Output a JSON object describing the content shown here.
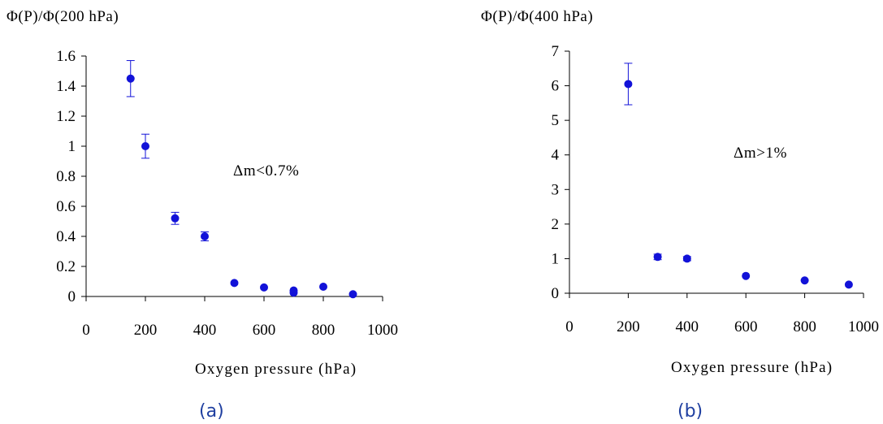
{
  "colors": {
    "marker": "#1212d8",
    "axis": "#000000",
    "panel_label": "#1f3fa0"
  },
  "chart_data": [
    {
      "type": "scatter",
      "ylabel": "Φ(P)/Φ(200 hPa)",
      "xlabel": "Oxygen pressure (hPa)",
      "annotation": "Δm<0.7%",
      "panel_label": "(a)",
      "xlim": [
        0,
        1000
      ],
      "ylim": [
        0,
        1.6
      ],
      "xticks": [
        "0",
        "200",
        "400",
        "600",
        "800",
        "1000"
      ],
      "yticks": [
        "0",
        "0.2",
        "0.4",
        "0.6",
        "0.8",
        "1",
        "1.2",
        "1.4",
        "1.6"
      ],
      "points": [
        {
          "x": 150,
          "y": 1.45,
          "err": 0.12
        },
        {
          "x": 200,
          "y": 1.0,
          "err": 0.08
        },
        {
          "x": 300,
          "y": 0.52,
          "err": 0.04
        },
        {
          "x": 400,
          "y": 0.4,
          "err": 0.03
        },
        {
          "x": 500,
          "y": 0.09,
          "err": 0
        },
        {
          "x": 600,
          "y": 0.06,
          "err": 0
        },
        {
          "x": 700,
          "y": 0.04,
          "err": 0
        },
        {
          "x": 700,
          "y": 0.025,
          "err": 0
        },
        {
          "x": 800,
          "y": 0.065,
          "err": 0
        },
        {
          "x": 900,
          "y": 0.015,
          "err": 0
        }
      ]
    },
    {
      "type": "scatter",
      "ylabel": "Φ(P)/Φ(400 hPa)",
      "xlabel": "Oxygen pressure (hPa)",
      "annotation": "Δm>1%",
      "panel_label": "(b)",
      "xlim": [
        0,
        1000
      ],
      "ylim": [
        0,
        7
      ],
      "xticks": [
        "0",
        "200",
        "400",
        "600",
        "800",
        "1000"
      ],
      "yticks": [
        "0",
        "1",
        "2",
        "3",
        "4",
        "5",
        "6",
        "7"
      ],
      "points": [
        {
          "x": 200,
          "y": 6.05,
          "err": 0.6
        },
        {
          "x": 300,
          "y": 1.05,
          "err": 0.08
        },
        {
          "x": 400,
          "y": 1.0,
          "err": 0.06
        },
        {
          "x": 600,
          "y": 0.5,
          "err": 0
        },
        {
          "x": 800,
          "y": 0.37,
          "err": 0
        },
        {
          "x": 950,
          "y": 0.25,
          "err": 0
        }
      ]
    }
  ]
}
